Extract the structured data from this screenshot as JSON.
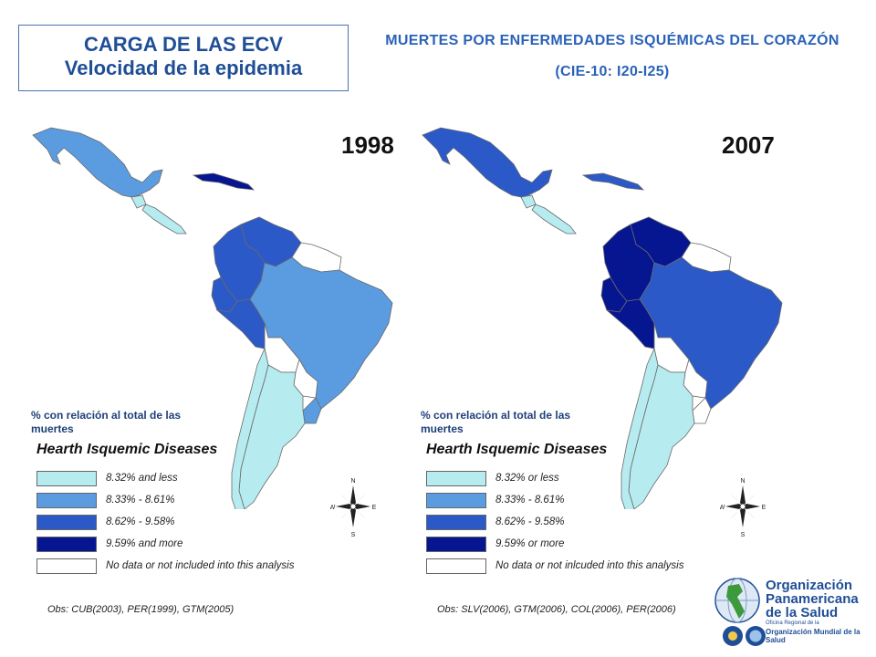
{
  "title": {
    "line1": "CARGA DE LAS ECV",
    "line2": "Velocidad de la epidemia"
  },
  "header": {
    "line1": "MUERTES POR ENFERMEDADES ISQUÉMICAS DEL CORAZÓN",
    "line2": "(CIE-10: I20-I25)"
  },
  "colors": {
    "c1": "#b6ecf0",
    "c2": "#5b9be0",
    "c3": "#2b59c8",
    "c4": "#061590",
    "none": "#ffffff",
    "border": "#6a6a6a"
  },
  "maps": [
    {
      "year": "1998",
      "pct_label": "% con relación al total de las muertes",
      "legend_title": "Hearth Isquemic Diseases",
      "legend": [
        "8.32% and less",
        "8.33% - 8.61%",
        "8.62% - 9.58%",
        "9.59% and more",
        "No data or not included into this analysis"
      ],
      "obs": "Obs: CUB(2003), PER(1999), GTM(2005)",
      "fills": {
        "mexico": "c2",
        "guatemala": "c1",
        "central": "c1",
        "cuba": "c4",
        "venezuela": "c3",
        "colombia": "c3",
        "ecuador": "c3",
        "peru": "c3",
        "brazil": "c2",
        "bolivia": "none",
        "paraguay": "none",
        "guianas": "none",
        "argentina": "c1",
        "chile": "c1",
        "uruguay": "c2"
      }
    },
    {
      "year": "2007",
      "pct_label": "% con relación al total de las muertes",
      "legend_title": "Hearth Isquemic Diseases",
      "legend": [
        "8.32% or less",
        "8.33% - 8.61%",
        "8.62% - 9.58%",
        "9.59% or more",
        "No data or not inlcuded into this analysis"
      ],
      "obs": "Obs: SLV(2006), GTM(2006), COL(2006), PER(2006)",
      "fills": {
        "mexico": "c3",
        "guatemala": "c1",
        "central": "c1",
        "cuba": "c3",
        "venezuela": "c4",
        "colombia": "c4",
        "ecuador": "c4",
        "peru": "c4",
        "brazil": "c3",
        "bolivia": "none",
        "paraguay": "none",
        "guianas": "none",
        "argentina": "c1",
        "chile": "c1",
        "uruguay": "none"
      }
    }
  ],
  "compass": {
    "n": "N",
    "s": "S",
    "e": "E",
    "w": "W"
  },
  "logo": {
    "line1": "Organización",
    "line2": "Panamericana",
    "line3": "de la Salud",
    "sub1": "Oficina Regional de la",
    "oms": "Organización Mundial de la Salud"
  }
}
